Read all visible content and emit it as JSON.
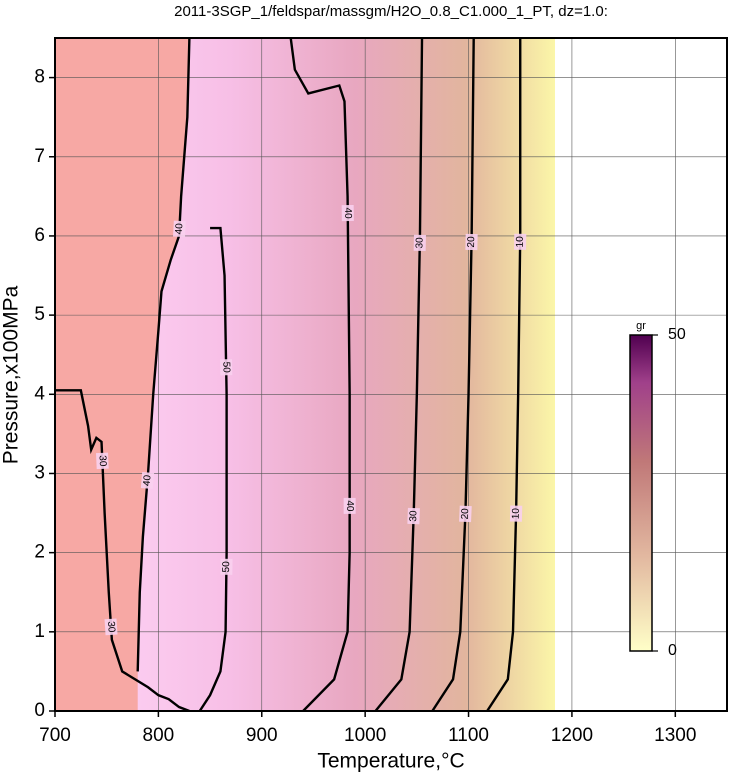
{
  "chart_data": {
    "type": "contour",
    "title": "2011-3SGP_1/feldspar/massgm/H2O_0.8_C1.000_1_PT, dz=1.0:",
    "x_label": "Temperature,°C",
    "y_label": "Pressure,x100MPa",
    "xlim": [
      700,
      1350
    ],
    "ylim": [
      0,
      8.5
    ],
    "xticks": [
      700,
      800,
      900,
      1000,
      1100,
      1200,
      1300
    ],
    "yticks": [
      0,
      1,
      2,
      3,
      4,
      5,
      6,
      7,
      8
    ],
    "grid": true,
    "line_color": "#000000",
    "colorbar": {
      "label": "gr",
      "lim": [
        0,
        50
      ],
      "ticks": [
        0,
        50
      ]
    },
    "contours": [
      {
        "level": 40,
        "x": [
          780,
          782,
          785,
          790,
          795,
          800,
          803,
          812,
          820,
          822,
          828,
          830
        ],
        "y": [
          0.5,
          1.5,
          2.2,
          3,
          4,
          4.8,
          5.3,
          5.7,
          6.0,
          6.5,
          7.5,
          8.5
        ]
      },
      {
        "level": 50,
        "x": [
          850,
          860,
          864,
          866,
          866,
          865,
          860,
          850,
          840
        ],
        "y": [
          6.1,
          6.1,
          5.5,
          4,
          2,
          1,
          0.5,
          0.2,
          0
        ]
      },
      {
        "level": 40,
        "x": [
          928,
          932,
          945,
          975,
          980,
          983,
          985,
          985,
          983,
          970,
          940
        ],
        "y": [
          8.5,
          8.1,
          7.8,
          7.9,
          7.7,
          6.5,
          4,
          2,
          1,
          0.4,
          0
        ]
      },
      {
        "level": 30,
        "x": [
          1055,
          1053,
          1050,
          1047,
          1043,
          1035,
          1010
        ],
        "y": [
          8.5,
          6,
          4,
          2.5,
          1,
          0.4,
          0
        ]
      },
      {
        "level": 20,
        "x": [
          1105,
          1103,
          1100,
          1097,
          1092,
          1085,
          1065
        ],
        "y": [
          8.5,
          6,
          4,
          2.5,
          1,
          0.4,
          0
        ]
      },
      {
        "level": 10,
        "x": [
          1150,
          1150,
          1148,
          1146,
          1143,
          1138,
          1118
        ],
        "y": [
          8.5,
          6,
          4,
          2.5,
          1,
          0.4,
          0
        ]
      },
      {
        "level": 30,
        "x": [
          700,
          725,
          732,
          735,
          740,
          745,
          748,
          752,
          755,
          765,
          790,
          800,
          810,
          820,
          830
        ],
        "y": [
          4.05,
          4.05,
          3.6,
          3.3,
          3.45,
          3.4,
          2.5,
          1.5,
          0.9,
          0.5,
          0.3,
          0.2,
          0.15,
          0.05,
          0
        ]
      }
    ]
  }
}
